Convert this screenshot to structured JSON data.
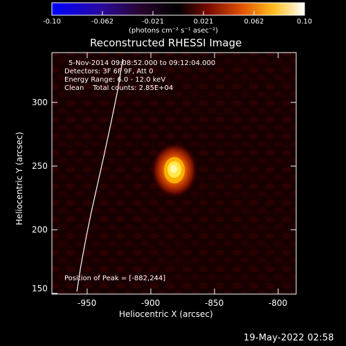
{
  "colorbar": {
    "ticks": [
      "-0.10",
      "-0.062",
      "-0.021",
      "0.021",
      "0.062",
      "0.10"
    ],
    "unit_label": "(photons cm⁻² s⁻¹ asec⁻²)",
    "range": [
      -0.1,
      0.1
    ]
  },
  "image": {
    "title": "Reconstructed RHESSI Image",
    "info_lines": [
      "5-Nov-2014 09:08:52.000 to 09:12:04.000",
      "Detectors: 3F 6F 9F, Att 0",
      "Energy Range: 6.0 - 12.0 keV",
      "Clean    Total counts: 2.85E+04"
    ],
    "peak_label": "Position of Peak = [-882,244]"
  },
  "x_axis": {
    "label": "Heliocentric X (arcsec)",
    "ticks": [
      "-950",
      "-900",
      "-850",
      "-800"
    ]
  },
  "y_axis": {
    "label": "Heliocentric Y (arcsec)",
    "ticks": [
      "300",
      "250",
      "200",
      "150"
    ]
  },
  "timestamp": "19-May-2022 02:58",
  "colors": {
    "background": "#000000",
    "limb_line": "#ffffff",
    "source_core": "#fff36a",
    "source_halo": "#a01800"
  },
  "chart_data": {
    "type": "heatmap",
    "title": "Reconstructed RHESSI Image",
    "xlabel": "Heliocentric X (arcsec)",
    "ylabel": "Heliocentric Y (arcsec)",
    "xlim": [
      -972,
      -786
    ],
    "ylim": [
      148,
      337
    ],
    "peak": [
      -882,
      244
    ],
    "solar_limb": {
      "x": [
        -953,
        -950,
        -946,
        -942,
        -937,
        -932,
        -927,
        -922,
        -918
      ],
      "y": [
        150,
        170,
        192,
        212,
        235,
        258,
        282,
        307,
        332
      ]
    },
    "colorbar_range": [
      -0.1,
      0.1
    ]
  }
}
